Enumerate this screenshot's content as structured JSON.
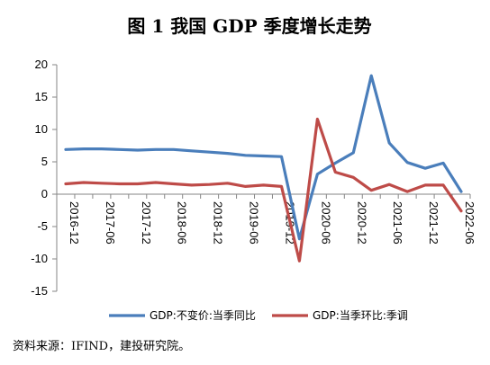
{
  "chart_data": {
    "type": "line",
    "title": "图 1  我国 GDP 季度增长走势",
    "categories": [
      "2016-12",
      "2017-03",
      "2017-06",
      "2017-09",
      "2017-12",
      "2018-03",
      "2018-06",
      "2018-09",
      "2018-12",
      "2019-03",
      "2019-06",
      "2019-09",
      "2019-12",
      "2020-03",
      "2020-06",
      "2020-09",
      "2020-12",
      "2021-03",
      "2021-06",
      "2021-09",
      "2021-12",
      "2022-03",
      "2022-06"
    ],
    "x_tick_labels": [
      "2016-12",
      "2017-06",
      "2017-12",
      "2018-06",
      "2018-12",
      "2019-06",
      "2019-12",
      "2020-06",
      "2020-12",
      "2021-06",
      "2021-12",
      "2022-06"
    ],
    "ylim": [
      -15,
      20
    ],
    "y_ticks": [
      20,
      15,
      10,
      5,
      0,
      -5,
      -10,
      -15
    ],
    "grid": false,
    "legend_position": "bottom",
    "series": [
      {
        "name": "GDP:不变价:当季同比",
        "color": "#4a7ebb",
        "values": [
          6.9,
          7.0,
          7.0,
          6.9,
          6.8,
          6.9,
          6.9,
          6.7,
          6.5,
          6.3,
          6.0,
          5.9,
          5.8,
          -6.9,
          3.1,
          4.8,
          6.4,
          18.3,
          7.9,
          4.9,
          4.0,
          4.8,
          0.4
        ]
      },
      {
        "name": "GDP:当季环比:季调",
        "color": "#be4b48",
        "values": [
          1.6,
          1.8,
          1.7,
          1.6,
          1.6,
          1.8,
          1.6,
          1.4,
          1.5,
          1.7,
          1.2,
          1.4,
          1.2,
          -10.3,
          11.6,
          3.4,
          2.6,
          0.6,
          1.5,
          0.4,
          1.4,
          1.4,
          -2.6
        ]
      }
    ]
  },
  "source_note": "资料来源：IFIND，建投研究院。"
}
